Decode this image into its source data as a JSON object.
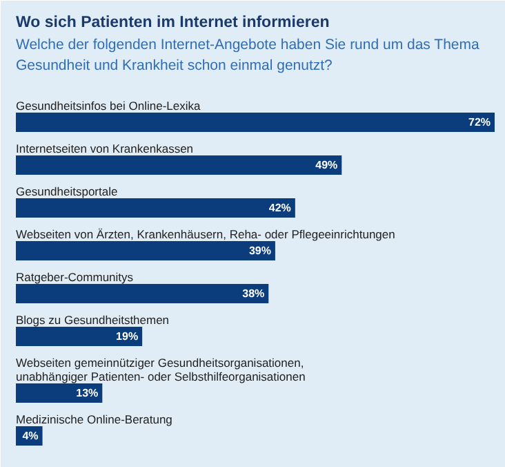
{
  "chart_data": {
    "type": "bar",
    "orientation": "horizontal",
    "title": "Wo sich Patienten im Internet informieren",
    "subtitle": "Welche der folgenden Internet-Angebote haben Sie rund um das Thema\nGesundheit und Krankheit schon einmal genutzt?",
    "categories": [
      "Gesundheitsinfos bei Online-Lexika",
      "Internetseiten von Krankenkassen",
      "Gesundheitsportale",
      "Webseiten von Ärzten, Krankenhäusern, Reha- oder Pflegeeinrichtungen",
      "Ratgeber-Communitys",
      "Blogs zu Gesundheitsthemen",
      "Webseiten gemeinnütziger Gesundheitsorganisationen,\nunabhängiger Patienten- oder Selbsthilfeorganisationen",
      "Medizinische Online-Beratung"
    ],
    "values": [
      72,
      49,
      42,
      39,
      38,
      19,
      13,
      4
    ],
    "value_labels": [
      "72%",
      "49%",
      "42%",
      "39%",
      "38%",
      "19%",
      "13%",
      "4%"
    ],
    "color": "#0b3d7c",
    "grid": false
  }
}
